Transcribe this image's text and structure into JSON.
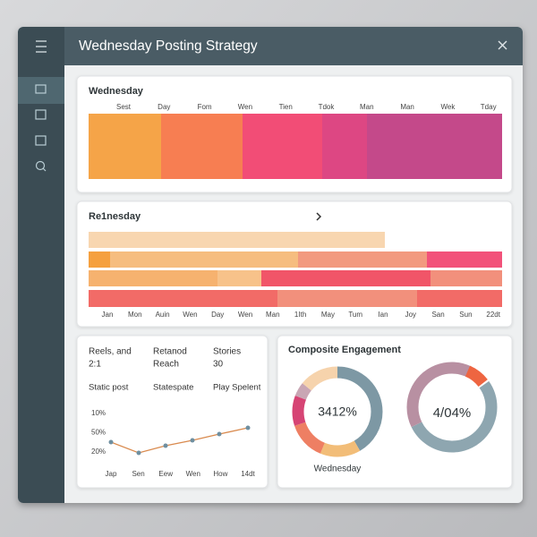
{
  "header": {
    "title": "Wednesday Posting Strategy"
  },
  "heatmap_card": {
    "title": "Wednesday",
    "columns": [
      "Sest",
      "Day",
      "Fom",
      "Wen",
      "Tien",
      "Tdok",
      "Man",
      "Man",
      "Wek",
      "Tday"
    ]
  },
  "timeline_card": {
    "title": "Re1nesday",
    "axis_labels": [
      "Jan",
      "Mon",
      "Auin",
      "Wen",
      "Day",
      "Wen",
      "Man",
      "1Ith",
      "May",
      "Tum",
      "Ian",
      "Joy",
      "San",
      "Sun",
      "22dt"
    ]
  },
  "stats_card": {
    "stats": [
      [
        "Reels, and",
        "2:1"
      ],
      [
        "Retanod",
        "Reach"
      ],
      [
        "Stories",
        "30"
      ]
    ],
    "sublabels": [
      "Static post",
      "Statespate",
      "Play Spelent"
    ],
    "y_labels": [
      "10%",
      "50%",
      "20%"
    ],
    "x_labels": [
      "Jap",
      "Sen",
      "Eew",
      "Wen",
      "How",
      "14dt"
    ]
  },
  "engagement_card": {
    "title": "Composite Engagement",
    "donuts": [
      {
        "center": "3412%",
        "caption": "Wednesday"
      },
      {
        "center": "4/04%"
      }
    ]
  }
}
